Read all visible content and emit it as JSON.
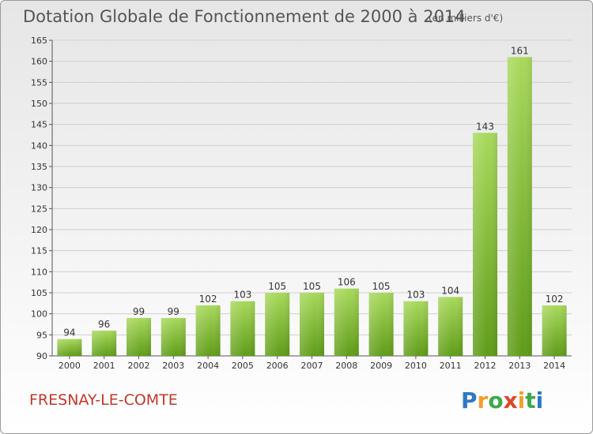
{
  "title": "Dotation Globale de Fonctionnement de 2000 à 2014",
  "subtitle": "(en milliers d'€)",
  "commune": "FRESNAY-LE-COMTE",
  "logo": {
    "letters": [
      "P",
      "r",
      "o",
      "x",
      "i",
      "t",
      "i"
    ],
    "colors": [
      "#2f78c2",
      "#f0a030",
      "#3ea84a",
      "#e0442a",
      "#f0a030",
      "#3ea84a",
      "#2f78c2"
    ]
  },
  "colors": {
    "bar_top": "#a8d95c",
    "bar_bottom": "#5f9c18",
    "grid": "#cfcfcf",
    "text": "#333333",
    "commune": "#c0392b"
  },
  "chart_data": {
    "type": "bar",
    "title": "Dotation Globale de Fonctionnement de 2000 à 2014",
    "subtitle": "(en milliers d'€)",
    "categories": [
      "2000",
      "2001",
      "2002",
      "2003",
      "2004",
      "2005",
      "2006",
      "2007",
      "2008",
      "2009",
      "2010",
      "2011",
      "2012",
      "2013",
      "2014"
    ],
    "values": [
      94,
      96,
      99,
      99,
      102,
      103,
      105,
      105,
      106,
      105,
      103,
      104,
      143,
      161,
      102
    ],
    "ylim": [
      90,
      165
    ],
    "yticks": [
      90,
      95,
      100,
      105,
      110,
      115,
      120,
      125,
      130,
      135,
      140,
      145,
      150,
      155,
      160,
      165
    ],
    "grid": true,
    "data_labels": true
  }
}
